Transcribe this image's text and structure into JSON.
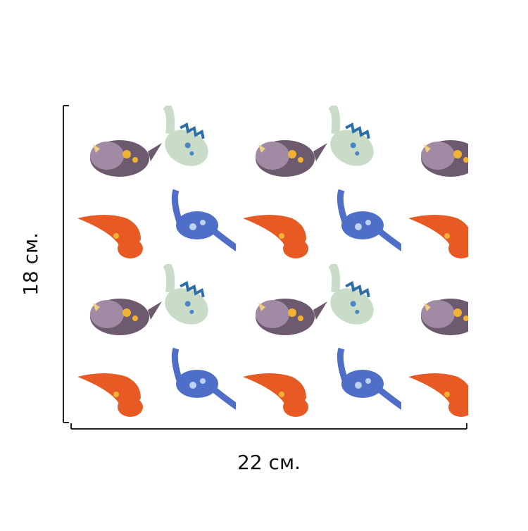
{
  "dimensions": {
    "height_label": "18 см.",
    "width_label": "22 см."
  }
}
